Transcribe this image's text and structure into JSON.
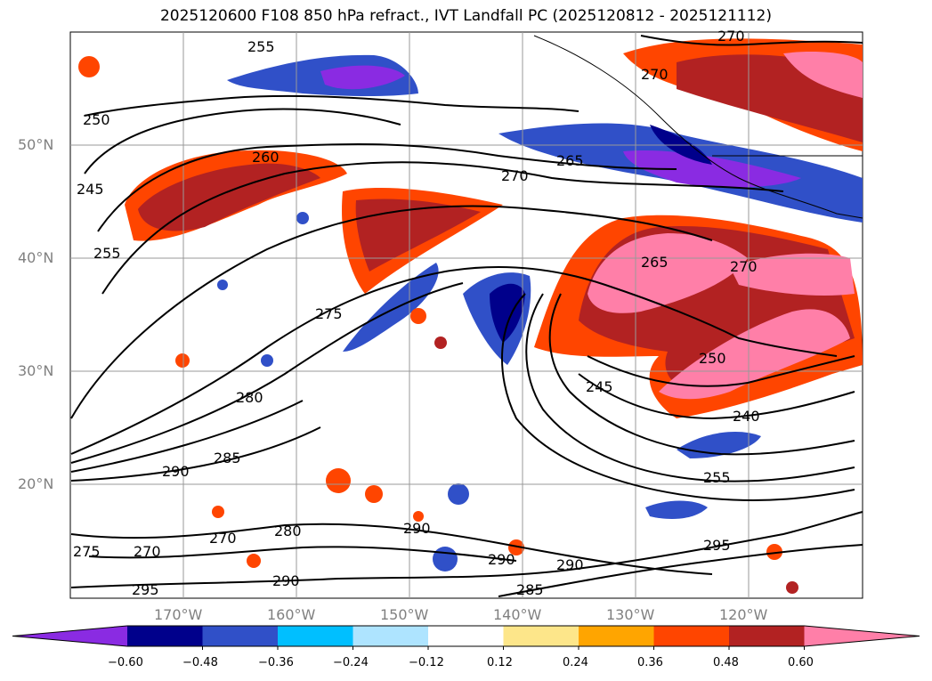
{
  "title": "2025120600 F108 850 hPa refract., IVT Landfall PC (2025120812 - 2025121112)",
  "map": {
    "lon_labels": [
      "170°W",
      "160°W",
      "150°W",
      "140°W",
      "130°W",
      "120°W"
    ],
    "lat_labels": [
      "50°N",
      "40°N",
      "30°N",
      "20°N"
    ],
    "contour_labels": [
      "255",
      "250",
      "245",
      "255",
      "260",
      "270",
      "265",
      "270",
      "270",
      "275",
      "265",
      "270",
      "250",
      "245",
      "240",
      "255",
      "280",
      "285",
      "290",
      "270",
      "275",
      "270",
      "280",
      "290",
      "290",
      "290",
      "285",
      "295",
      "295",
      "290"
    ]
  },
  "colorbar": {
    "ticks": [
      "−0.60",
      "−0.48",
      "−0.36",
      "−0.24",
      "−0.12",
      "0.12",
      "0.24",
      "0.36",
      "0.48",
      "0.60"
    ],
    "colors": [
      "#8a2be2",
      "#00008b",
      "#3050c8",
      "#00bfff",
      "#aee4ff",
      "#ffffff",
      "#fde68a",
      "#ffa500",
      "#ff4500",
      "#b22222",
      "#ff7fa8"
    ]
  }
}
